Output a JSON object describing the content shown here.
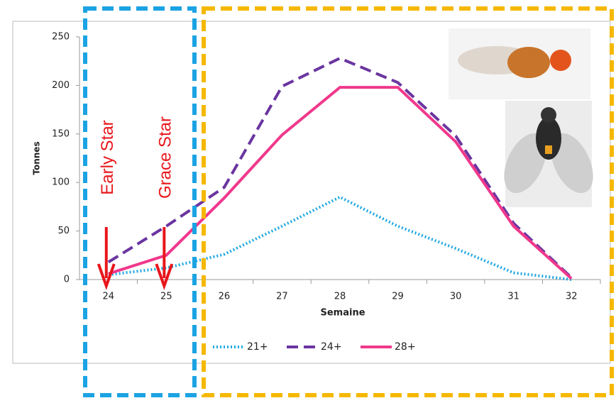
{
  "chart_data": {
    "type": "line",
    "x_label": "Semaine",
    "y_label": "Tonnes",
    "x": [
      24,
      25,
      26,
      27,
      28,
      29,
      30,
      31,
      32
    ],
    "xlim": [
      23.5,
      32.5
    ],
    "ylim": [
      0,
      250
    ],
    "yticks": [
      0,
      50,
      100,
      150,
      200,
      250
    ],
    "grid": false,
    "legend": "bottom",
    "series": [
      {
        "name": "21+",
        "color": "#1ea7e1",
        "style": "dotted",
        "values": [
          5,
          12,
          26,
          55,
          85,
          55,
          32,
          7,
          0
        ]
      },
      {
        "name": "24+",
        "color": "#6a35a0",
        "style": "dashed",
        "values": [
          18,
          55,
          95,
          199,
          228,
          203,
          148,
          58,
          2
        ]
      },
      {
        "name": "28+",
        "color": "#f0388c",
        "style": "solid",
        "values": [
          6,
          25,
          84,
          149,
          198,
          198,
          142,
          55,
          1
        ]
      }
    ],
    "annotations": [
      "Early Star",
      "Grace Star"
    ]
  }
}
